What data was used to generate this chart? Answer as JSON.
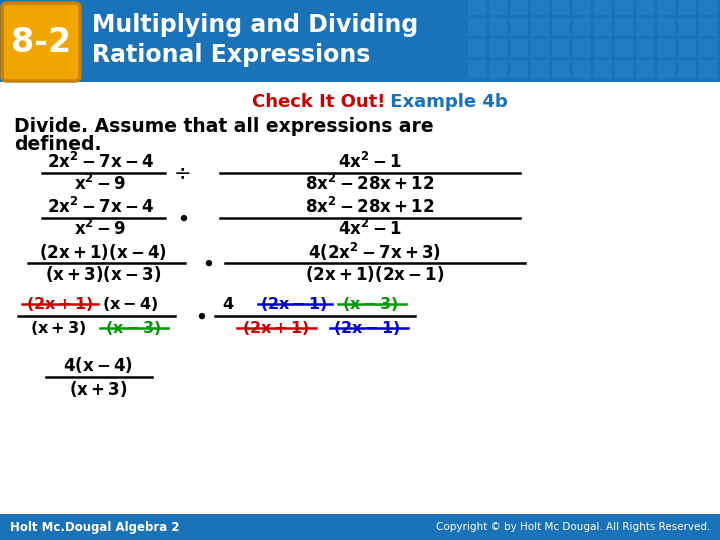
{
  "header_bg": "#1a72b8",
  "header_grid_color": "#2a82c8",
  "badge_bg": "#f0a500",
  "badge_border": "#c88000",
  "title_line1": "Multiplying and Dividing",
  "title_line2": "Rational Expressions",
  "badge_label": "8-2",
  "check_text": "Check It Out!",
  "example_text": " Example 4b",
  "check_color": "#cc0000",
  "example_color": "#1a72b8",
  "footer_bg": "#1a72b8",
  "footer_left": "Holt Mc.Dougal Algebra 2",
  "footer_right": "Copyright © by Holt Mc Dougal. All Rights Reserved.",
  "white": "#ffffff",
  "black": "#000000",
  "red": "#cc0000",
  "green": "#009900",
  "blue": "#0000cc",
  "bg": "#ffffff"
}
